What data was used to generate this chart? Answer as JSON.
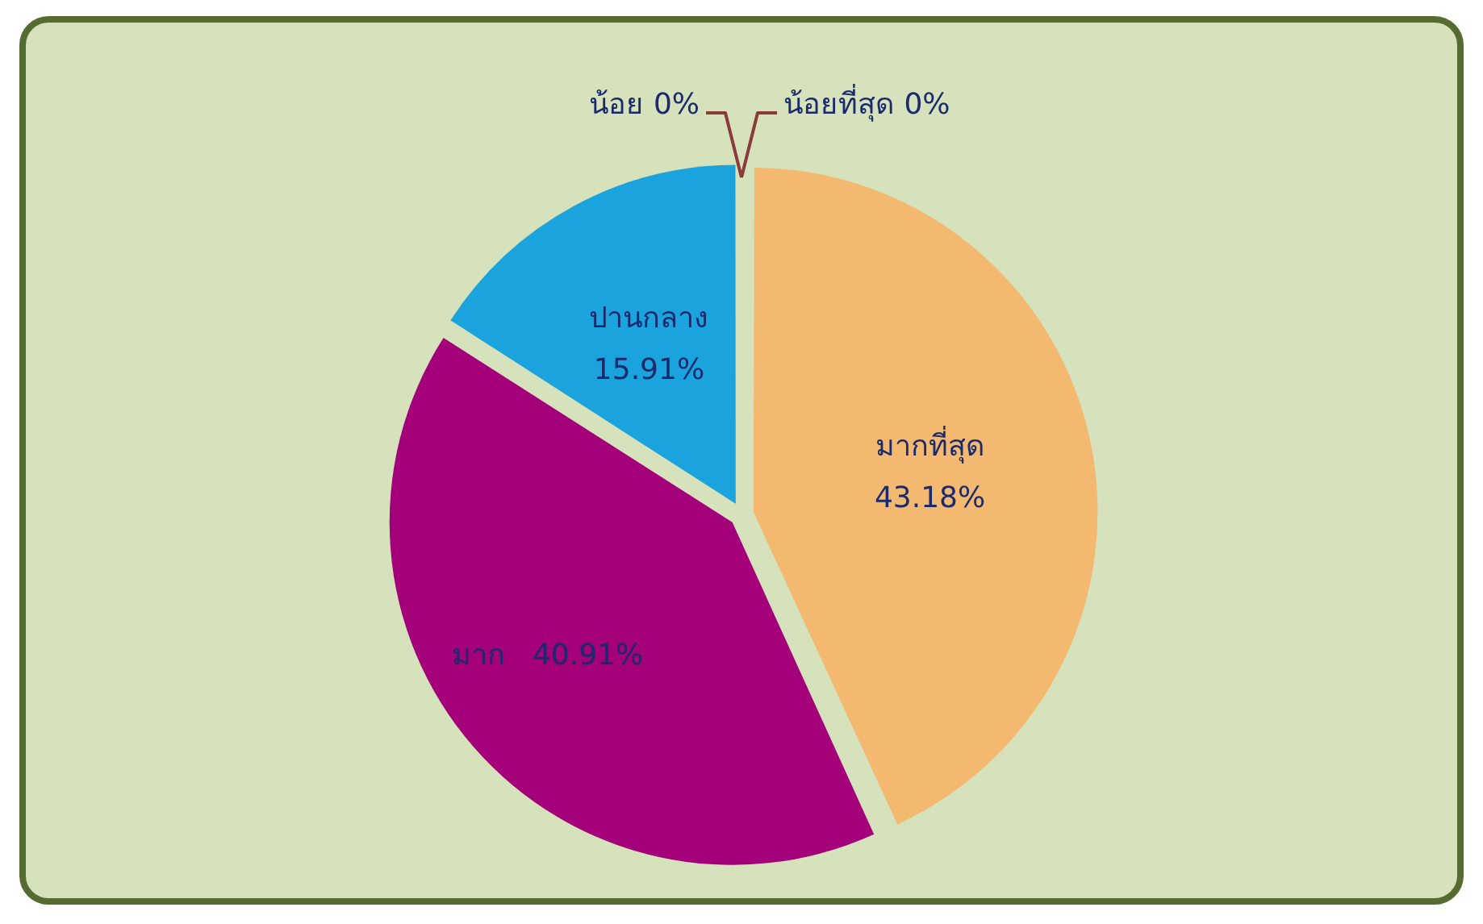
{
  "chart_data": {
    "type": "pie",
    "categories": [
      "มากที่สุด",
      "มาก",
      "ปานกลาง",
      "น้อย",
      "น้อยที่สุด"
    ],
    "values": [
      43.18,
      40.91,
      15.91,
      0,
      0
    ],
    "colors": [
      "#f3b970",
      "#a3007a",
      "#1aa3dc",
      "#8b3a3a",
      "#8b3a3a"
    ],
    "value_labels": [
      "43.18%",
      "40.91%",
      "15.91%",
      "0%",
      "0%"
    ],
    "legend": false
  }
}
